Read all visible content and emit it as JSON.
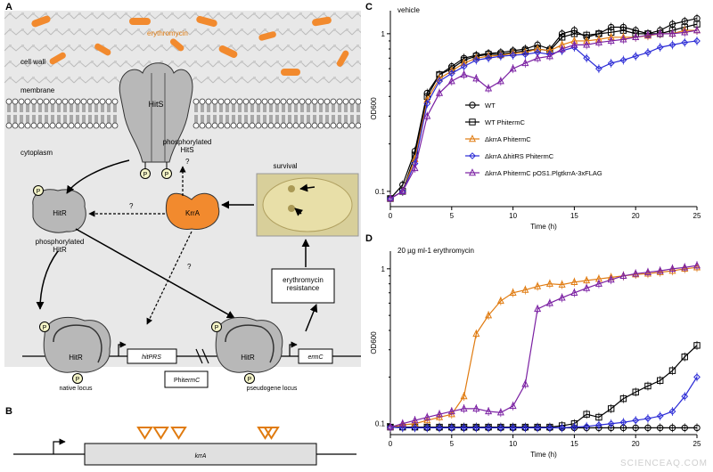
{
  "panel_letters": {
    "a": "A",
    "b": "B",
    "c": "C",
    "d": "D"
  },
  "panel_a": {
    "erythromycin_label": "erythromycin",
    "cell_wall_label": "cell wall",
    "membrane_label": "membrane",
    "cytoplasm_label": "cytoplasm",
    "hits_label": "HitS",
    "phosphorylated_hits_label": "phosphorylated\nHitS",
    "hitr_label": "HitR",
    "phosphorylated_hitr_label": "phosphorylated\nHitR",
    "krra_label": "KrrA",
    "survival_label": "survival",
    "resistance_label": "erythromycin\nresistance",
    "hitprs_label": "hitPRS",
    "ermc_label": "ermC",
    "native_locus_label": "native locus",
    "pseudogene_locus_label": "pseudogene locus",
    "phit_label": "Phit",
    "phit_ermc_label": "ermC",
    "phospho_label": "P",
    "question_mark": "?",
    "colors": {
      "accent_orange": "#f28a2e",
      "protein_gray": "#b8b8b8",
      "background_gray": "#e8e8e8"
    }
  },
  "panel_b": {
    "gene_label": "krrA",
    "insertion_marker_color": "#e07b10"
  },
  "chart_data": [
    {
      "type": "line",
      "panel": "C",
      "title": "vehicle",
      "xlabel": "Time (h)",
      "ylabel": "OD600",
      "yscale": "log",
      "xlim": [
        0,
        25
      ],
      "ylim": [
        0.08,
        1.4
      ],
      "xticks": [
        0,
        5,
        10,
        15,
        20,
        25
      ],
      "yticks": [
        {
          "value": 0.1,
          "label": "0.1"
        },
        {
          "value": 1,
          "label": "1"
        }
      ],
      "series": [
        {
          "name": "WT",
          "marker": "circle",
          "color": "#000000",
          "x": [
            0,
            1,
            2,
            3,
            4,
            5,
            6,
            7,
            8,
            9,
            10,
            11,
            12,
            13,
            14,
            15,
            16,
            17,
            18,
            19,
            20,
            21,
            22,
            23,
            24,
            25
          ],
          "y": [
            0.09,
            0.11,
            0.18,
            0.42,
            0.55,
            0.62,
            0.7,
            0.73,
            0.75,
            0.76,
            0.78,
            0.8,
            0.85,
            0.8,
            1.0,
            1.05,
            0.95,
            1.0,
            1.1,
            1.1,
            1.05,
            1.0,
            1.05,
            1.15,
            1.2,
            1.25
          ]
        },
        {
          "name": "WT PhitermC",
          "marker": "square",
          "color": "#000000",
          "x": [
            0,
            1,
            2,
            3,
            4,
            5,
            6,
            7,
            8,
            9,
            10,
            11,
            12,
            13,
            14,
            15,
            16,
            17,
            18,
            19,
            20,
            21,
            22,
            23,
            24,
            25
          ],
          "y": [
            0.09,
            0.1,
            0.17,
            0.4,
            0.55,
            0.6,
            0.68,
            0.72,
            0.74,
            0.74,
            0.76,
            0.78,
            0.8,
            0.78,
            0.95,
            1.0,
            0.98,
            1.0,
            1.02,
            1.05,
            1.0,
            1.0,
            1.0,
            1.05,
            1.1,
            1.15
          ]
        },
        {
          "name": "ΔkrrA PhitermC",
          "marker": "triangle",
          "color": "#e07b10",
          "x": [
            0,
            1,
            2,
            3,
            4,
            5,
            6,
            7,
            8,
            9,
            10,
            11,
            12,
            13,
            14,
            15,
            16,
            17,
            18,
            19,
            20,
            21,
            22,
            23,
            24,
            25
          ],
          "y": [
            0.09,
            0.1,
            0.16,
            0.38,
            0.52,
            0.58,
            0.65,
            0.7,
            0.72,
            0.73,
            0.75,
            0.76,
            0.8,
            0.78,
            0.85,
            0.9,
            0.9,
            0.92,
            0.95,
            0.95,
            0.95,
            0.97,
            1.0,
            1.0,
            1.05,
            1.05
          ]
        },
        {
          "name": "ΔkrrA ΔhitRS PhitermC",
          "marker": "diamond",
          "color": "#2b2bd6",
          "x": [
            0,
            1,
            2,
            3,
            4,
            5,
            6,
            7,
            8,
            9,
            10,
            11,
            12,
            13,
            14,
            15,
            16,
            17,
            18,
            19,
            20,
            21,
            22,
            23,
            24,
            25
          ],
          "y": [
            0.09,
            0.1,
            0.15,
            0.36,
            0.5,
            0.56,
            0.62,
            0.68,
            0.7,
            0.72,
            0.73,
            0.74,
            0.76,
            0.74,
            0.78,
            0.82,
            0.7,
            0.6,
            0.65,
            0.68,
            0.72,
            0.76,
            0.82,
            0.85,
            0.88,
            0.9
          ]
        },
        {
          "name": "ΔkrrA PhitermC pOS1.PlgtkrrA-3xFLAG",
          "marker": "triangle",
          "color": "#7a1fa2",
          "x": [
            0,
            1,
            2,
            3,
            4,
            5,
            6,
            7,
            8,
            9,
            10,
            11,
            12,
            13,
            14,
            15,
            16,
            17,
            18,
            19,
            20,
            21,
            22,
            23,
            24,
            25
          ],
          "y": [
            0.09,
            0.1,
            0.14,
            0.3,
            0.42,
            0.5,
            0.55,
            0.52,
            0.45,
            0.5,
            0.6,
            0.65,
            0.7,
            0.72,
            0.8,
            0.85,
            0.85,
            0.88,
            0.9,
            0.92,
            0.95,
            0.98,
            1.0,
            1.0,
            1.02,
            1.05
          ]
        }
      ]
    },
    {
      "type": "line",
      "panel": "D",
      "title": "20 µg ml-1 erythromycin",
      "xlabel": "Time (h)",
      "ylabel": "OD600",
      "yscale": "log",
      "xlim": [
        0,
        25
      ],
      "ylim": [
        0.085,
        1.3
      ],
      "xticks": [
        0,
        5,
        10,
        15,
        20,
        25
      ],
      "yticks": [
        {
          "value": 0.1,
          "label": "0.1"
        },
        {
          "value": 1,
          "label": "1"
        }
      ],
      "series": [
        {
          "name": "WT",
          "marker": "circle",
          "color": "#000000",
          "x": [
            0,
            1,
            2,
            3,
            4,
            5,
            6,
            7,
            8,
            9,
            10,
            11,
            12,
            13,
            14,
            15,
            16,
            17,
            18,
            19,
            20,
            21,
            22,
            23,
            24,
            25
          ],
          "y": [
            0.095,
            0.095,
            0.095,
            0.094,
            0.094,
            0.094,
            0.094,
            0.094,
            0.094,
            0.094,
            0.094,
            0.094,
            0.094,
            0.094,
            0.094,
            0.094,
            0.094,
            0.094,
            0.094,
            0.094,
            0.094,
            0.094,
            0.094,
            0.094,
            0.094,
            0.094
          ]
        },
        {
          "name": "WT PhitermC",
          "marker": "square",
          "color": "#000000",
          "x": [
            0,
            1,
            2,
            3,
            4,
            5,
            6,
            7,
            8,
            9,
            10,
            11,
            12,
            13,
            14,
            15,
            16,
            17,
            18,
            19,
            20,
            21,
            22,
            23,
            24,
            25
          ],
          "y": [
            0.095,
            0.095,
            0.095,
            0.095,
            0.095,
            0.095,
            0.095,
            0.095,
            0.095,
            0.095,
            0.095,
            0.095,
            0.095,
            0.095,
            0.097,
            0.1,
            0.115,
            0.11,
            0.125,
            0.145,
            0.16,
            0.175,
            0.19,
            0.22,
            0.27,
            0.32
          ]
        },
        {
          "name": "ΔkrrA PhitermC",
          "marker": "triangle",
          "color": "#e07b10",
          "x": [
            0,
            1,
            2,
            3,
            4,
            5,
            6,
            7,
            8,
            9,
            10,
            11,
            12,
            13,
            14,
            15,
            16,
            17,
            18,
            19,
            20,
            21,
            22,
            23,
            24,
            25
          ],
          "y": [
            0.095,
            0.098,
            0.1,
            0.105,
            0.11,
            0.115,
            0.15,
            0.38,
            0.5,
            0.62,
            0.7,
            0.73,
            0.77,
            0.8,
            0.79,
            0.82,
            0.84,
            0.86,
            0.88,
            0.9,
            0.92,
            0.93,
            0.95,
            0.97,
            1.0,
            1.02
          ]
        },
        {
          "name": "ΔkrrA ΔhitRS PhitermC",
          "marker": "diamond",
          "color": "#2b2bd6",
          "x": [
            0,
            1,
            2,
            3,
            4,
            5,
            6,
            7,
            8,
            9,
            10,
            11,
            12,
            13,
            14,
            15,
            16,
            17,
            18,
            19,
            20,
            21,
            22,
            23,
            24,
            25
          ],
          "y": [
            0.095,
            0.094,
            0.094,
            0.094,
            0.094,
            0.094,
            0.094,
            0.094,
            0.094,
            0.094,
            0.094,
            0.094,
            0.094,
            0.094,
            0.094,
            0.095,
            0.096,
            0.098,
            0.1,
            0.102,
            0.105,
            0.108,
            0.112,
            0.12,
            0.15,
            0.2
          ]
        },
        {
          "name": "ΔkrrA PhitermC pOS1.PlgtkrrA-3xFLAG",
          "marker": "triangle",
          "color": "#7a1fa2",
          "x": [
            0,
            1,
            2,
            3,
            4,
            5,
            6,
            7,
            8,
            9,
            10,
            11,
            12,
            13,
            14,
            15,
            16,
            17,
            18,
            19,
            20,
            21,
            22,
            23,
            24,
            25
          ],
          "y": [
            0.095,
            0.1,
            0.105,
            0.11,
            0.115,
            0.12,
            0.125,
            0.125,
            0.12,
            0.118,
            0.13,
            0.18,
            0.55,
            0.6,
            0.65,
            0.7,
            0.75,
            0.8,
            0.85,
            0.9,
            0.93,
            0.95,
            0.97,
            1.0,
            1.02,
            1.05
          ]
        }
      ]
    }
  ],
  "watermark": "SCIENCEAQ.COM"
}
